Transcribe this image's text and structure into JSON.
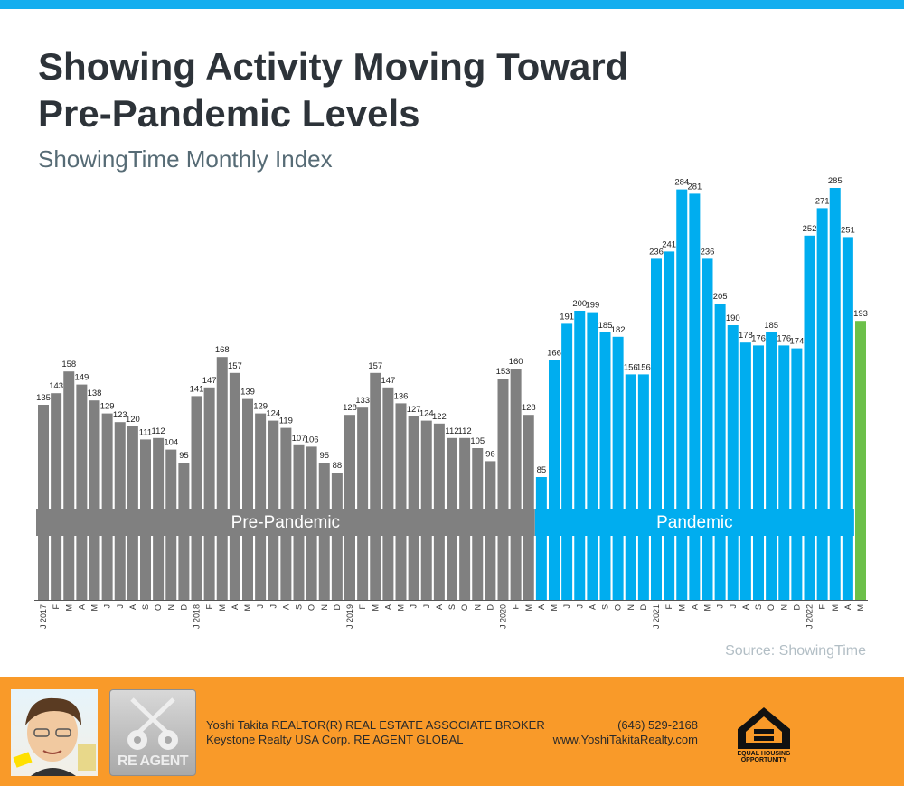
{
  "header": {
    "title_line1": "Showing Activity Moving Toward",
    "title_line2": "Pre-Pandemic Levels",
    "subtitle": "ShowingTime Monthly Index",
    "accent_color": "#14aeef"
  },
  "chart_data": {
    "type": "bar",
    "title": "Showing Activity Moving Toward Pre-Pandemic Levels",
    "subtitle": "ShowingTime Monthly Index",
    "xlabel": "",
    "ylabel": "",
    "ylim": [
      0,
      300
    ],
    "grid": false,
    "legend": "none",
    "categories": [
      "J 2017",
      "F",
      "M",
      "A",
      "M",
      "J",
      "J",
      "A",
      "S",
      "O",
      "N",
      "D",
      "J 2018",
      "F",
      "M",
      "A",
      "M",
      "J",
      "J",
      "A",
      "S",
      "O",
      "N",
      "D",
      "J 2019",
      "F",
      "M",
      "A",
      "M",
      "J",
      "J",
      "A",
      "S",
      "O",
      "N",
      "D",
      "J 2020",
      "F",
      "M",
      "A",
      "M",
      "J",
      "J",
      "A",
      "S",
      "O",
      "N",
      "D",
      "J 2021",
      "F",
      "M",
      "A",
      "M",
      "J",
      "J",
      "A",
      "S",
      "O",
      "N",
      "D",
      "J 2022",
      "F",
      "M",
      "A",
      "M"
    ],
    "values": [
      135,
      143,
      158,
      149,
      138,
      129,
      123,
      120,
      111,
      112,
      104,
      95,
      141,
      147,
      168,
      157,
      139,
      129,
      124,
      119,
      107,
      106,
      95,
      88,
      128,
      133,
      157,
      147,
      136,
      127,
      124,
      122,
      112,
      112,
      105,
      96,
      153,
      160,
      128,
      85,
      166,
      191,
      200,
      199,
      185,
      182,
      156,
      156,
      236,
      241,
      284,
      281,
      236,
      205,
      190,
      178,
      176,
      185,
      176,
      174,
      252,
      271,
      285,
      251,
      193
    ],
    "periods": [
      {
        "label": "Pre-Pandemic",
        "start_index": 0,
        "end_index": 38,
        "color": "#808080"
      },
      {
        "label": "Pandemic",
        "start_index": 39,
        "end_index": 63,
        "color": "#00adef"
      },
      {
        "label": "",
        "start_index": 64,
        "end_index": 64,
        "color": "#6cc04a"
      }
    ],
    "source": "Source: ShowingTime"
  },
  "footer": {
    "agent_line1": "Yoshi Takita REALTOR(R) REAL ESTATE ASSOCIATE BROKER",
    "agent_line2": "Keystone Realty USA Corp.  RE AGENT GLOBAL",
    "phone": "(646) 529-2168",
    "website": "www.YoshiTakitaRealty.com",
    "logo_text": "RE AGENT",
    "eho_line1": "EQUAL HOUSING",
    "eho_line2": "OPPORTUNITY",
    "background_color": "#f99a29"
  }
}
